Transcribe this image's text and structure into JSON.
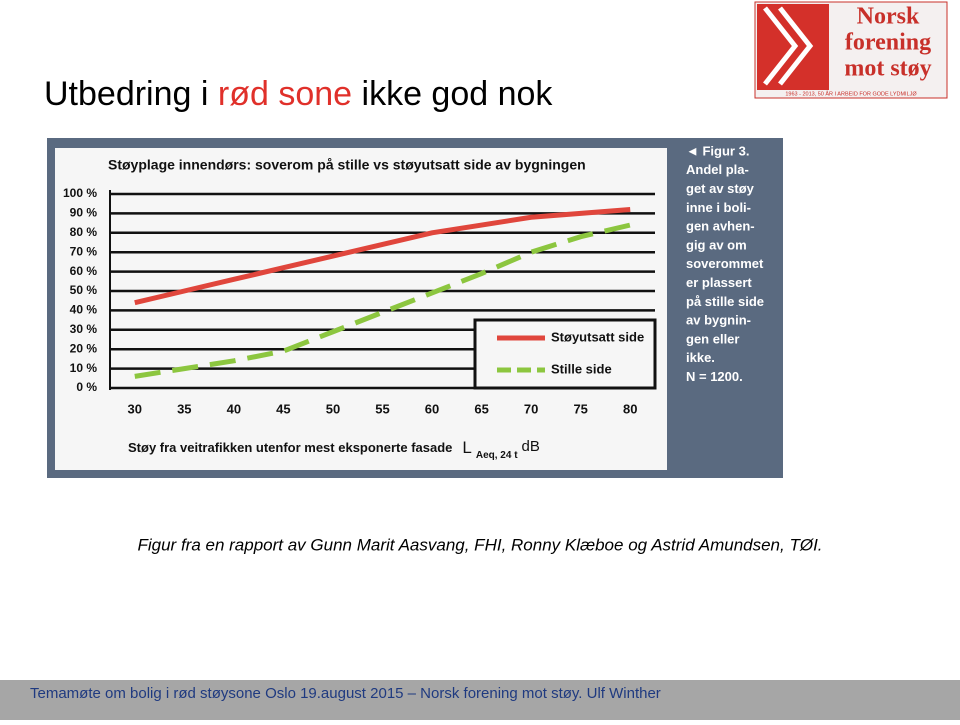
{
  "slide": {
    "title_parts": [
      "Utbedring i ",
      "rød sone",
      " ikke god nok"
    ],
    "logo": {
      "lines": [
        "Norsk",
        "forening",
        "mot støy"
      ],
      "tagline": "1963 - 2013, 50 ÅR I ARBEID FOR GODE LYDMILJØ"
    },
    "note_lines": [
      "◄ Figur 3.",
      "Andel pla-",
      "get av støy",
      "inne i boli-",
      "gen avhen-",
      "gig av om",
      "soverommet",
      "er plassert",
      "på stille side",
      "av bygnin-",
      "gen eller",
      "ikke.",
      "N = 1200."
    ],
    "caption": "Figur fra en rapport av Gunn Marit Aasvang, FHI, Ronny Klæboe og Astrid Amundsen, TØI.",
    "footer": "Temamøte om bolig i rød støysone Oslo 19.august  2015 – Norsk forening mot støy. Ulf Winther"
  },
  "chart_data": {
    "type": "line",
    "title": "Støyplage innendørs: soverom på stille vs støyutsatt side av bygningen",
    "xlabel": "Støy fra veitrafikken utenfor mest eksponerte fasade",
    "xlabel_symbol": "L",
    "xlabel_subscript": "Aeq, 24 t",
    "xlabel_unit": "dB",
    "x": [
      30,
      35,
      40,
      45,
      50,
      55,
      60,
      65,
      70,
      75,
      80
    ],
    "xlim": [
      27.5,
      82.5
    ],
    "xticks": [
      30,
      35,
      40,
      45,
      50,
      55,
      60,
      65,
      70,
      75,
      80
    ],
    "ylim": [
      0,
      100
    ],
    "yticks": [
      {
        "value": 0,
        "label": "0 %"
      },
      {
        "value": 10,
        "label": "10 %"
      },
      {
        "value": 20,
        "label": "20 %"
      },
      {
        "value": 30,
        "label": "30 %"
      },
      {
        "value": 40,
        "label": "40 %"
      },
      {
        "value": 50,
        "label": "50 %"
      },
      {
        "value": 60,
        "label": "60 %"
      },
      {
        "value": 70,
        "label": "70 %"
      },
      {
        "value": 80,
        "label": "80 %"
      },
      {
        "value": 90,
        "label": "90 %"
      },
      {
        "value": 100,
        "label": "100 %"
      }
    ],
    "grid": true,
    "legend": "lower right",
    "series": [
      {
        "name": "Støyutsatt side",
        "color": "#e0463c",
        "dashed": false,
        "values": [
          44,
          50,
          56,
          62,
          68,
          74,
          80,
          84,
          88,
          90,
          92
        ]
      },
      {
        "name": "Stille side",
        "color": "#8cc63f",
        "dashed": true,
        "values": [
          6,
          10,
          14,
          19,
          29,
          39,
          49,
          59,
          70,
          78,
          84
        ]
      }
    ]
  }
}
